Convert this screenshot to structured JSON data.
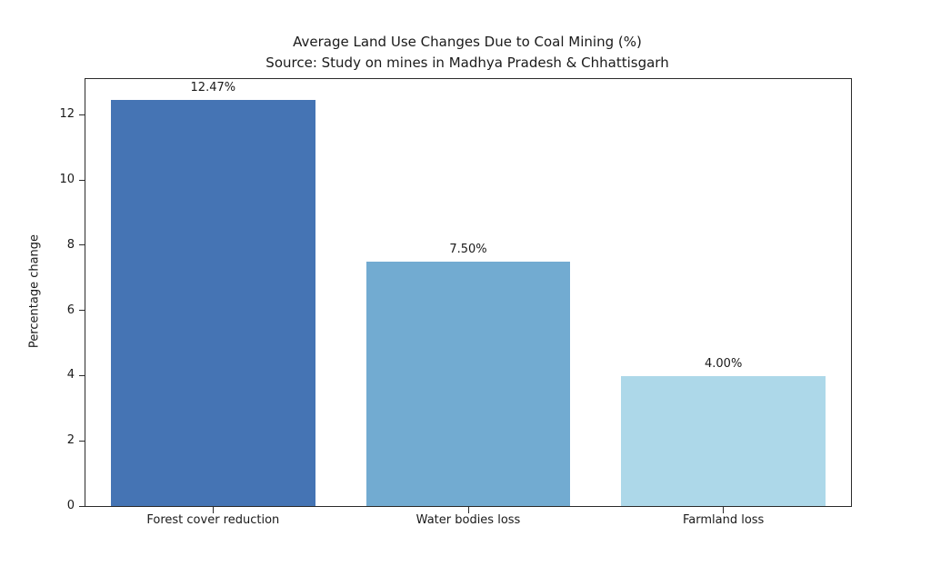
{
  "chart_data": {
    "type": "bar",
    "title": "Average Land Use Changes Due to Coal Mining (%)",
    "subtitle": "Source: Study on mines in Madhya Pradesh & Chhattisgarh",
    "categories": [
      "Forest cover reduction",
      "Water bodies loss",
      "Farmland loss"
    ],
    "values": [
      12.47,
      7.5,
      4.0
    ],
    "value_labels": [
      "12.47%",
      "7.50%",
      "4.00%"
    ],
    "bar_colors": [
      "#4574b4",
      "#72abd1",
      "#add8e9"
    ],
    "xlabel": "",
    "ylabel": "Percentage change",
    "ylim": [
      0,
      13.1
    ],
    "yticks": [
      0,
      2,
      4,
      6,
      8,
      10,
      12
    ],
    "grid": false,
    "legend_position": "none",
    "spine_color": "#2b2b2b",
    "text_color": "#1a1a1a",
    "background_color": "#ffffff"
  }
}
